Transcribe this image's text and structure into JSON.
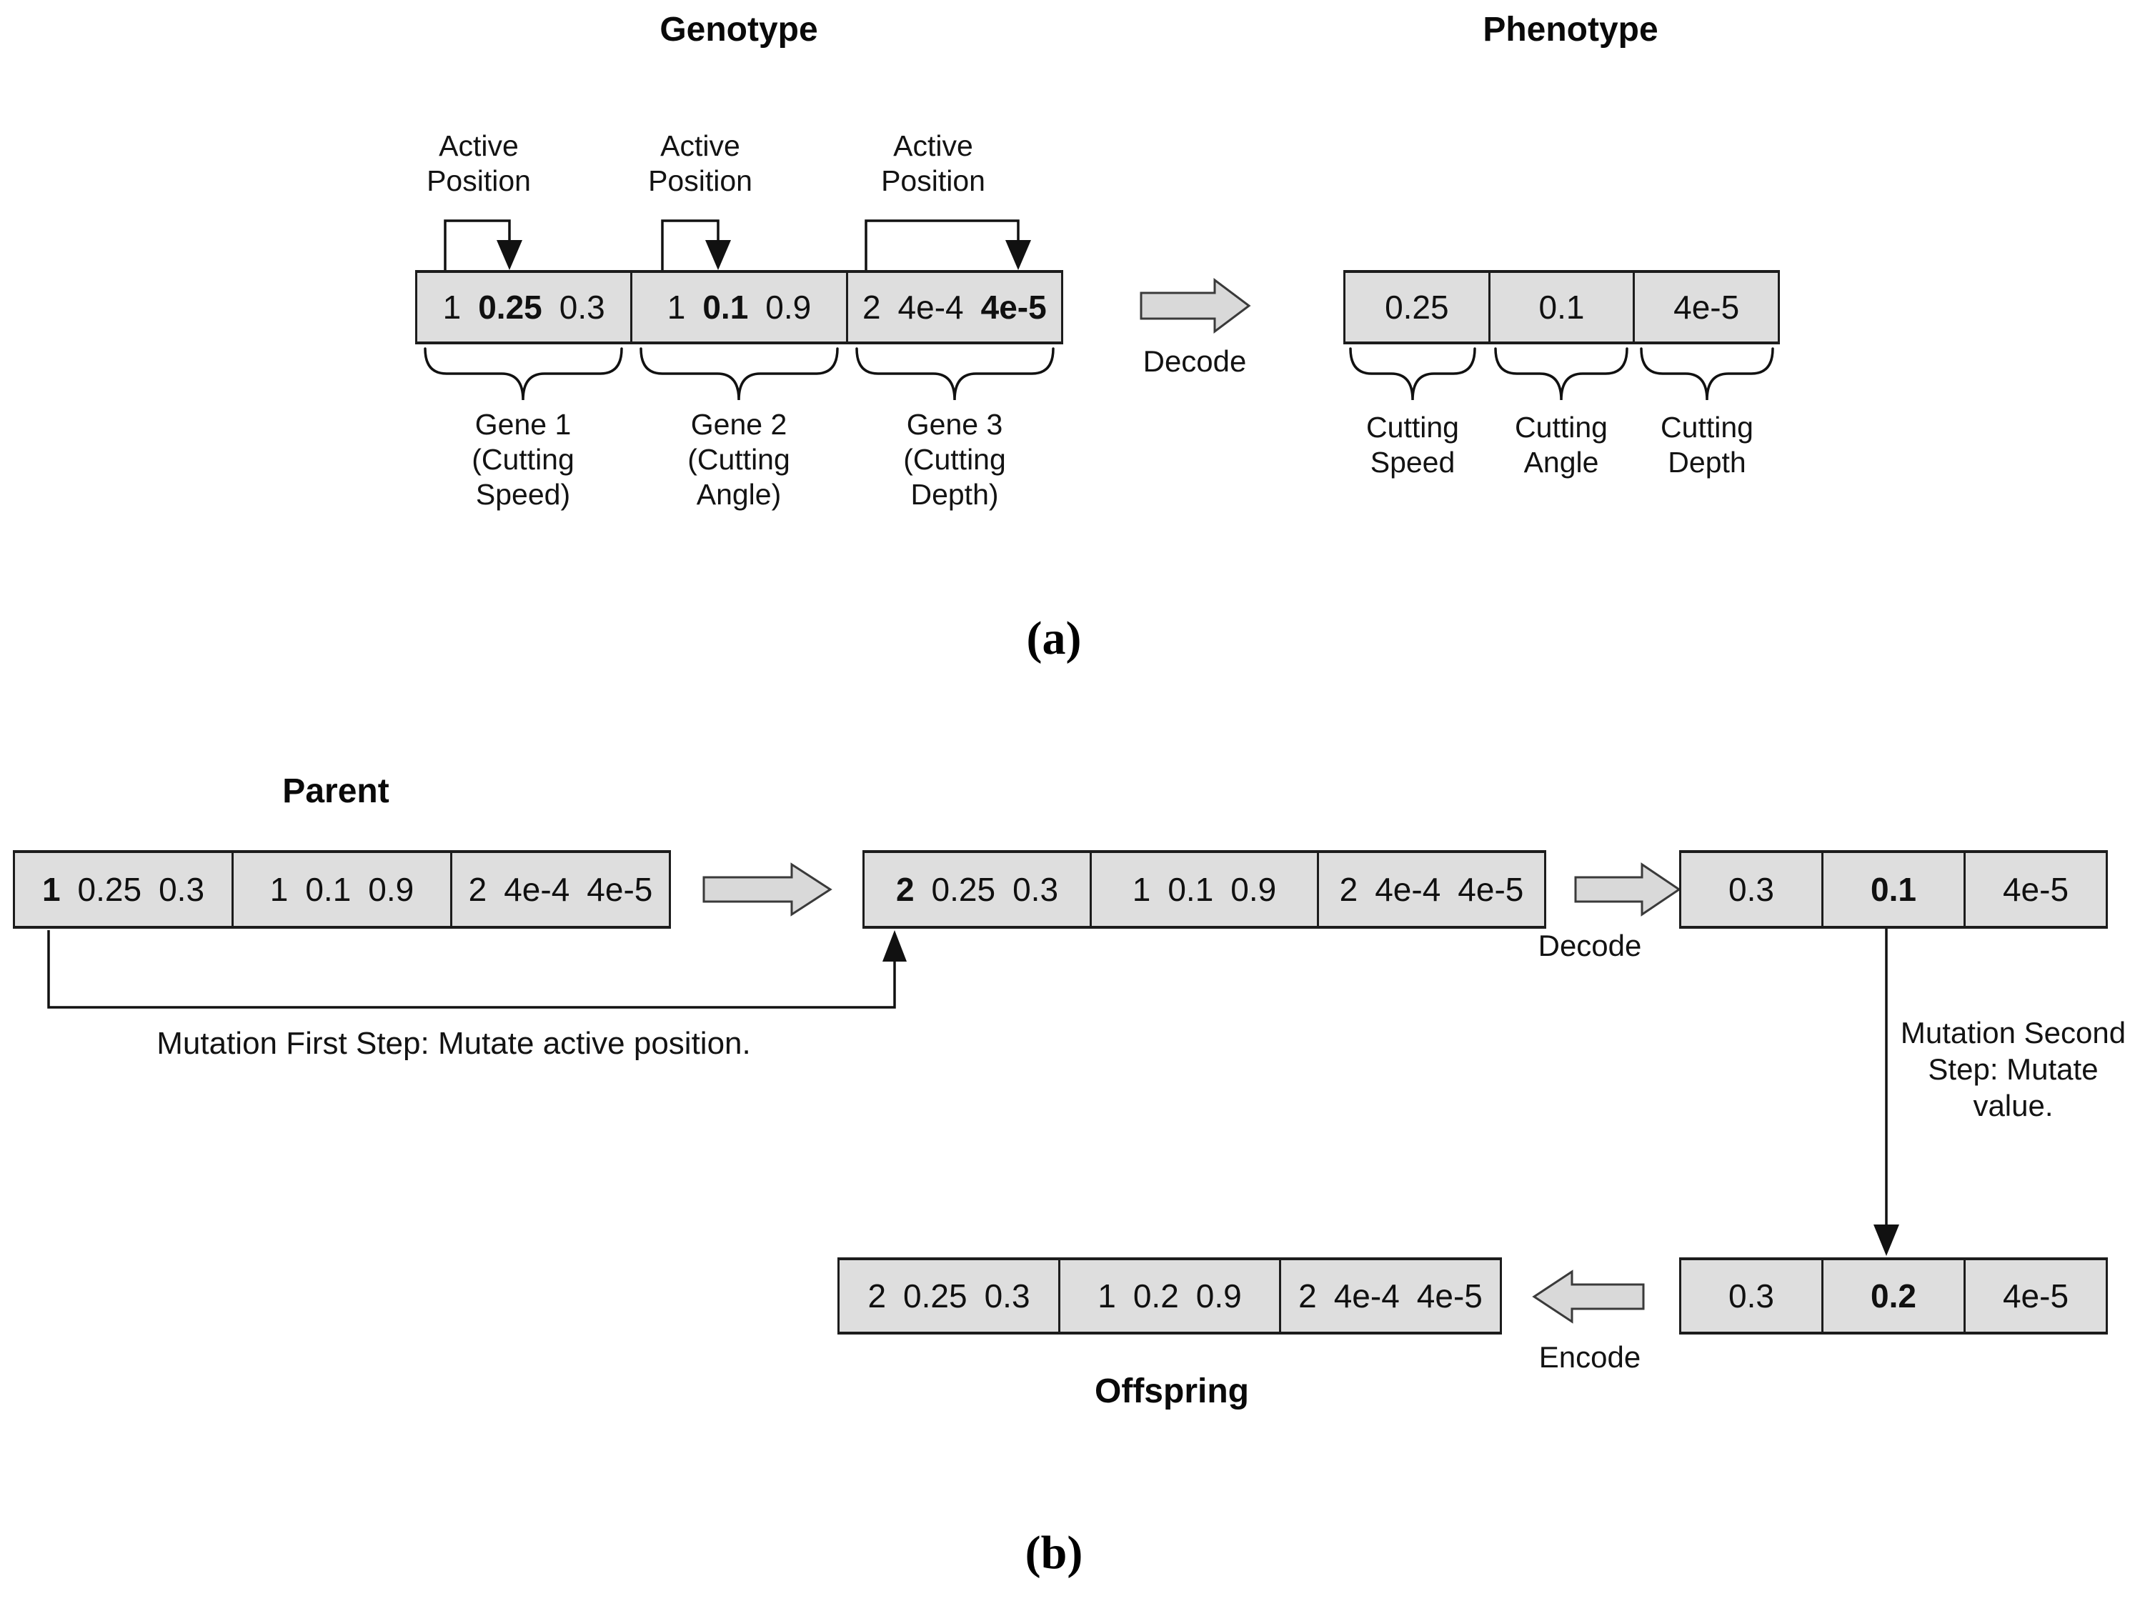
{
  "colors": {
    "box_fill": "#dedede",
    "box_border": "#1c1c1c",
    "arrow_fill": "#d9d9d9",
    "arrow_stroke": "#3a3a3a",
    "line_color": "#111111",
    "text": "#111111"
  },
  "panel_a": {
    "caption": "(a)",
    "genotype": {
      "title": "Genotype",
      "active_position_lines": [
        "Active",
        "Position"
      ],
      "box": {
        "cells": [
          {
            "tokens": [
              {
                "t": "1",
                "b": false
              },
              {
                "t": "0.25",
                "b": true
              },
              {
                "t": "0.3",
                "b": false
              }
            ]
          },
          {
            "tokens": [
              {
                "t": "1",
                "b": false
              },
              {
                "t": "0.1",
                "b": true
              },
              {
                "t": "0.9",
                "b": false
              }
            ]
          },
          {
            "tokens": [
              {
                "t": "2",
                "b": false
              },
              {
                "t": "4e-4",
                "b": false
              },
              {
                "t": "4e-5",
                "b": true
              }
            ]
          }
        ]
      },
      "gene_labels": [
        [
          "Gene 1",
          "(Cutting",
          "Speed)"
        ],
        [
          "Gene 2",
          "(Cutting",
          "Angle)"
        ],
        [
          "Gene 3",
          "(Cutting",
          "Depth)"
        ]
      ]
    },
    "decode_label": "Decode",
    "phenotype": {
      "title": "Phenotype",
      "box": {
        "cells": [
          {
            "tokens": [
              {
                "t": "0.25",
                "b": false
              }
            ]
          },
          {
            "tokens": [
              {
                "t": "0.1",
                "b": false
              }
            ]
          },
          {
            "tokens": [
              {
                "t": "4e-5",
                "b": false
              }
            ]
          }
        ]
      },
      "value_labels": [
        [
          "Cutting",
          "Speed"
        ],
        [
          "Cutting",
          "Angle"
        ],
        [
          "Cutting",
          "Depth"
        ]
      ]
    }
  },
  "panel_b": {
    "caption": "(b)",
    "parent_title": "Parent",
    "parent_box": {
      "cells": [
        {
          "tokens": [
            {
              "t": "1",
              "b": true
            },
            {
              "t": "0.25",
              "b": false
            },
            {
              "t": "0.3",
              "b": false
            }
          ]
        },
        {
          "tokens": [
            {
              "t": "1",
              "b": false
            },
            {
              "t": "0.1",
              "b": false
            },
            {
              "t": "0.9",
              "b": false
            }
          ]
        },
        {
          "tokens": [
            {
              "t": "2",
              "b": false
            },
            {
              "t": "4e-4",
              "b": false
            },
            {
              "t": "4e-5",
              "b": false
            }
          ]
        }
      ]
    },
    "mutated_genotype_box": {
      "cells": [
        {
          "tokens": [
            {
              "t": "2",
              "b": true
            },
            {
              "t": "0.25",
              "b": false
            },
            {
              "t": "0.3",
              "b": false
            }
          ]
        },
        {
          "tokens": [
            {
              "t": "1",
              "b": false
            },
            {
              "t": "0.1",
              "b": false
            },
            {
              "t": "0.9",
              "b": false
            }
          ]
        },
        {
          "tokens": [
            {
              "t": "2",
              "b": false
            },
            {
              "t": "4e-4",
              "b": false
            },
            {
              "t": "4e-5",
              "b": false
            }
          ]
        }
      ]
    },
    "decode_label": "Decode",
    "decoded_phenotype_box": {
      "cells": [
        {
          "tokens": [
            {
              "t": "0.3",
              "b": false
            }
          ]
        },
        {
          "tokens": [
            {
              "t": "0.1",
              "b": true
            }
          ]
        },
        {
          "tokens": [
            {
              "t": "4e-5",
              "b": false
            }
          ]
        }
      ]
    },
    "mutation_step1_text": "Mutation First Step: Mutate active position.",
    "mutation_step2_lines": [
      "Mutation Second",
      "Step: Mutate",
      "value."
    ],
    "mutated_phenotype_box": {
      "cells": [
        {
          "tokens": [
            {
              "t": "0.3",
              "b": false
            }
          ]
        },
        {
          "tokens": [
            {
              "t": "0.2",
              "b": true
            }
          ]
        },
        {
          "tokens": [
            {
              "t": "4e-5",
              "b": false
            }
          ]
        }
      ]
    },
    "encode_label": "Encode",
    "offspring_box": {
      "cells": [
        {
          "tokens": [
            {
              "t": "2",
              "b": false
            },
            {
              "t": "0.25",
              "b": false
            },
            {
              "t": "0.3",
              "b": false
            }
          ]
        },
        {
          "tokens": [
            {
              "t": "1",
              "b": false
            },
            {
              "t": "0.2",
              "b": false
            },
            {
              "t": "0.9",
              "b": false
            }
          ]
        },
        {
          "tokens": [
            {
              "t": "2",
              "b": false
            },
            {
              "t": "4e-4",
              "b": false
            },
            {
              "t": "4e-5",
              "b": false
            }
          ]
        }
      ]
    },
    "offspring_title": "Offspring"
  }
}
